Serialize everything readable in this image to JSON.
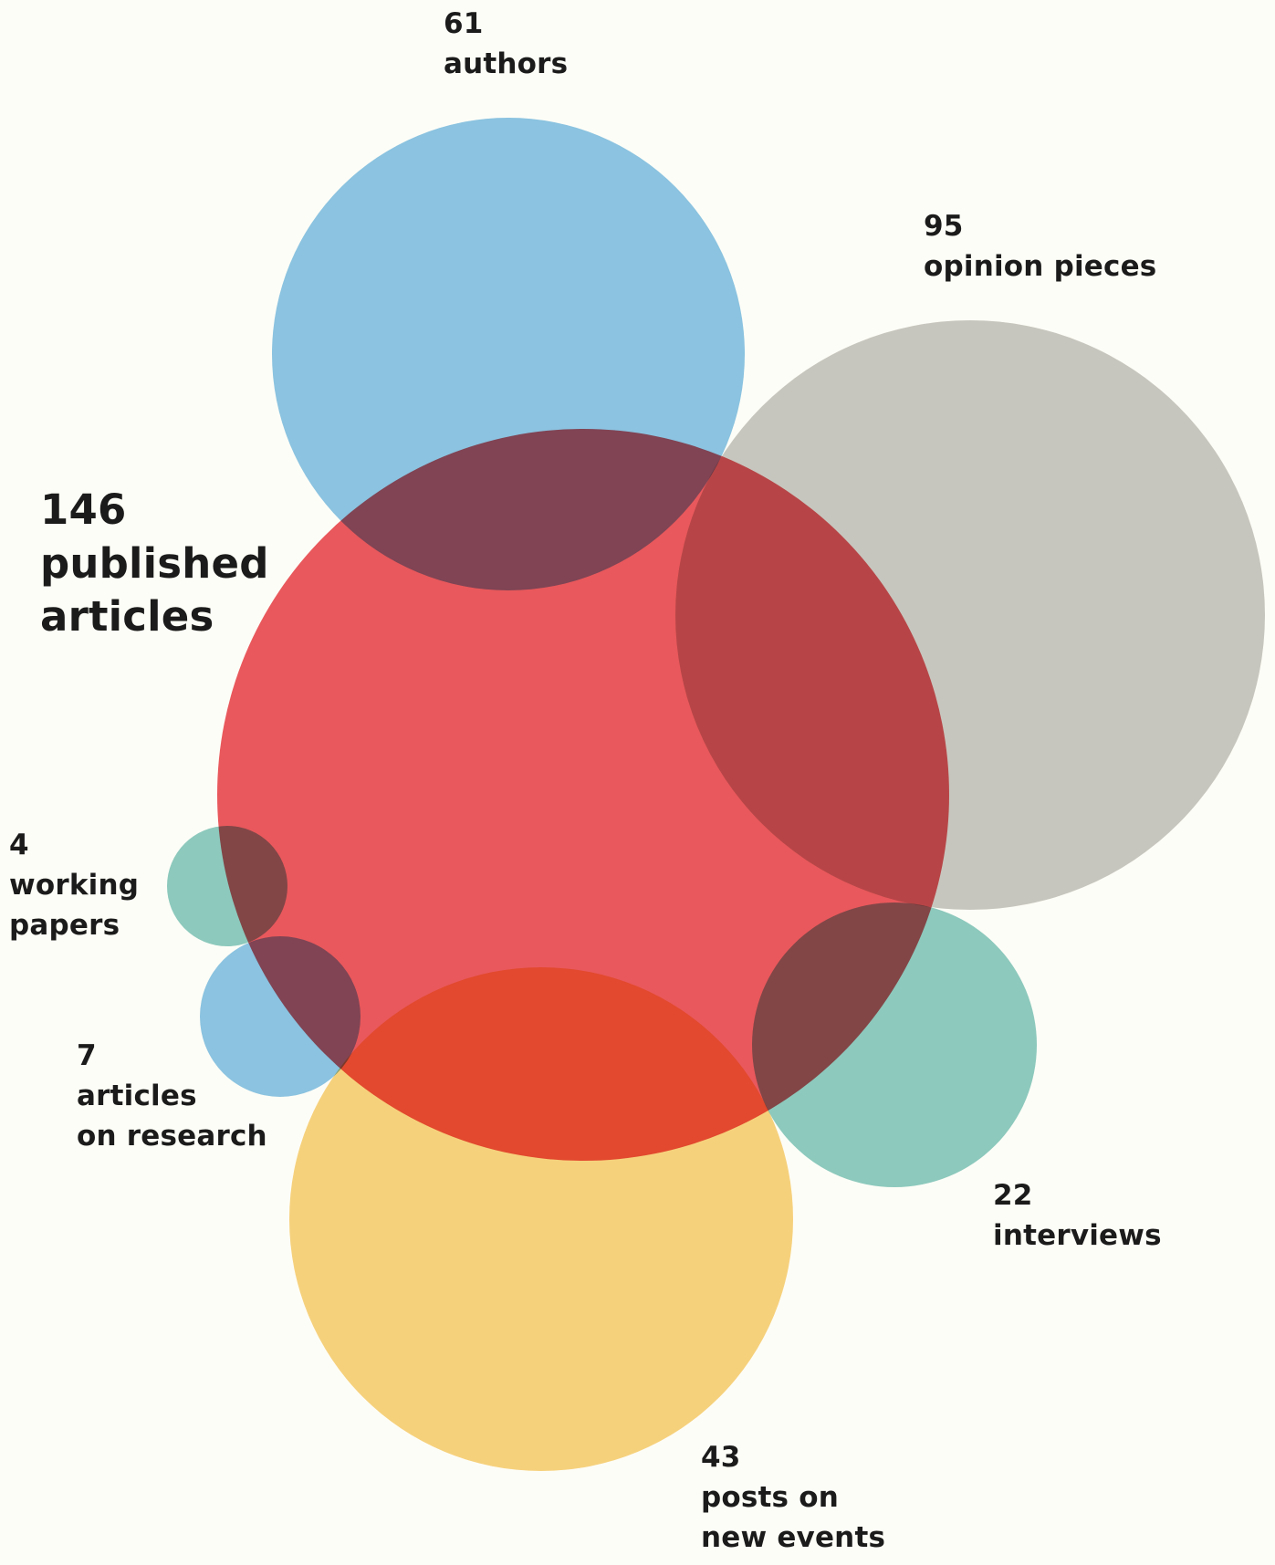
{
  "colors": {
    "background": "#fdfdf7",
    "published": "#e9585c",
    "authors": "#8cc5e8",
    "opinion": "#c9c8c4",
    "working": "#8ecbc3",
    "research": "#8cc5e8",
    "interviews": "#8ecbc3",
    "events": "#f8d380"
  },
  "labels": {
    "authors": {
      "count": "61",
      "line1": "authors"
    },
    "opinion": {
      "count": "95",
      "line1": "opinion pieces"
    },
    "published": {
      "count": "146",
      "line1": "published",
      "line2": "articles"
    },
    "working": {
      "count": "4",
      "line1": "working",
      "line2": "papers"
    },
    "research": {
      "count": "7",
      "line1": "articles",
      "line2": "on research"
    },
    "interviews": {
      "count": "22",
      "line1": "interviews"
    },
    "events": {
      "count": "43",
      "line1": "posts on",
      "line2": "new events"
    }
  },
  "chart_data": {
    "type": "bubble",
    "series": [
      {
        "name": "published articles",
        "value": 146
      },
      {
        "name": "authors",
        "value": 61
      },
      {
        "name": "opinion pieces",
        "value": 95
      },
      {
        "name": "working papers",
        "value": 4
      },
      {
        "name": "articles on research",
        "value": 7
      },
      {
        "name": "interviews",
        "value": 22
      },
      {
        "name": "posts on new events",
        "value": 43
      }
    ]
  }
}
